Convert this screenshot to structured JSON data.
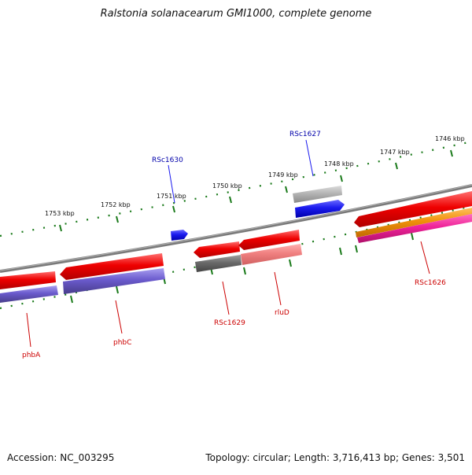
{
  "title": "Ralstonia solanacearum GMI1000, complete genome",
  "footer": {
    "accession_label": "Accession: NC_003295",
    "stats": "Topology: circular; Length: 3,716,413 bp; Genes: 3,501"
  },
  "ruler_ticks": [
    {
      "label": "1753 kbp"
    },
    {
      "label": "1752 kbp"
    },
    {
      "label": "1751 kbp"
    },
    {
      "label": "1750 kbp"
    },
    {
      "label": "1749 kbp"
    },
    {
      "label": "1748 kbp"
    },
    {
      "label": "1747 kbp"
    },
    {
      "label": "1746 kbp"
    }
  ],
  "gene_labels": {
    "rsc1630": "RSc1630",
    "rsc1627": "RSc1627",
    "rsc1629": "RSc1629",
    "rlud": "rluD",
    "phba": "phbA",
    "phbc": "phbC",
    "rsc1626": "RSc1626"
  },
  "colors": {
    "forward_label": "#0000aa",
    "reverse_label": "#cc0000",
    "backbone": "#808080",
    "ruler": "#1a7a1a",
    "gene_red": "#ee0000",
    "gene_blue": "#1a1aee",
    "gene_purple": "#6a5acd",
    "gene_grey": "#a9a9a9",
    "gene_dark_grey": "#696969",
    "gene_pink": "#f08080",
    "gene_orange": "#f0900a",
    "gene_magenta": "#ee2299"
  }
}
